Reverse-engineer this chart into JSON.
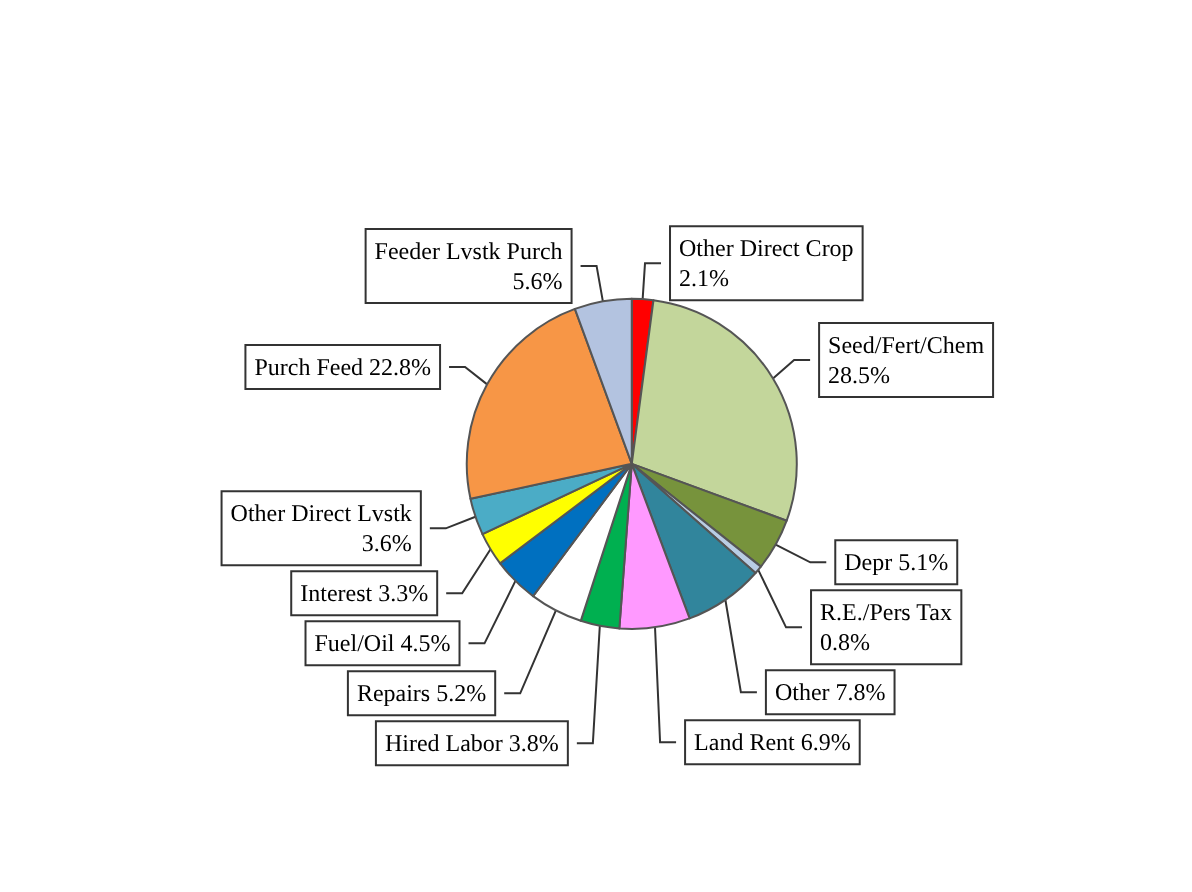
{
  "chart_data": {
    "type": "pie",
    "categories": [
      "Other Direct Crop",
      "Seed/Fert/Chem",
      "Depr",
      "R.E./Pers Tax",
      "Other",
      "Land Rent",
      "Hired Labor",
      "Repairs",
      "Fuel/Oil",
      "Interest",
      "Other Direct Lvstk",
      "Purch Feed",
      "Feeder Lvstk Purch"
    ],
    "values": [
      2.1,
      28.5,
      5.1,
      0.8,
      7.8,
      6.9,
      3.8,
      5.2,
      4.5,
      3.3,
      3.6,
      22.8,
      5.6
    ],
    "value_labels": [
      "2.1%",
      "28.5%",
      "5.1%",
      "0.8%",
      "7.8%",
      "6.9%",
      "3.8%",
      "5.2%",
      "4.5%",
      "3.3%",
      "3.6%",
      "22.8%",
      "5.6%"
    ],
    "colors": [
      "#ff0000",
      "#c3d69b",
      "#77933c",
      "#b9cde5",
      "#31859c",
      "#ff99ff",
      "#00b050",
      "#ffffff",
      "#0070c0",
      "#ffff00",
      "#4bacc6",
      "#f79646",
      "#b3c3e0"
    ],
    "legend": false
  }
}
